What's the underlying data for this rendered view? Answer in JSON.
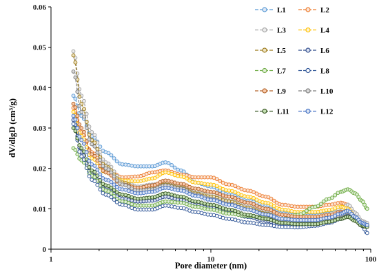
{
  "chart_data": {
    "type": "line",
    "title": "",
    "xlabel": "Pore diameter (nm)",
    "ylabel": "dV/dlgD (cm³/g)",
    "xscale": "log",
    "xlim": [
      1,
      100
    ],
    "ylim": [
      0,
      0.06
    ],
    "grid": false,
    "legend_position": "top-right",
    "x_ticks": [
      1,
      10,
      100
    ],
    "x_tick_labels": [
      "1",
      "10",
      "100"
    ],
    "y_ticks": [
      0,
      0.01,
      0.02,
      0.03,
      0.04,
      0.05,
      0.06
    ],
    "y_tick_labels": [
      "0",
      "0.01",
      "0.02",
      "0.03",
      "0.04",
      "0.05",
      "0.06"
    ],
    "x": [
      1.38,
      1.55,
      1.8,
      2.2,
      2.8,
      3.5,
      4.3,
      5.2,
      6.5,
      8,
      10,
      13,
      17,
      22,
      28,
      35,
      45,
      55,
      65,
      72,
      80,
      88,
      95
    ],
    "series": [
      {
        "name": "L1",
        "color": "#5b9bd5",
        "marker_fill": "#dfe9f7",
        "values": [
          0.038,
          0.033,
          0.028,
          0.024,
          0.021,
          0.0205,
          0.0205,
          0.0215,
          0.0195,
          0.0165,
          0.0155,
          0.0135,
          0.012,
          0.011,
          0.0095,
          0.009,
          0.009,
          0.0095,
          0.0105,
          0.011,
          0.0085,
          0.0065,
          0.006
        ]
      },
      {
        "name": "L2",
        "color": "#ed7d31",
        "marker_fill": "#fbe5d6",
        "values": [
          0.035,
          0.029,
          0.024,
          0.02,
          0.0178,
          0.018,
          0.019,
          0.0195,
          0.0185,
          0.0178,
          0.0178,
          0.016,
          0.0145,
          0.013,
          0.011,
          0.0105,
          0.0105,
          0.011,
          0.0115,
          0.011,
          0.0085,
          0.0065,
          0.006
        ]
      },
      {
        "name": "L3",
        "color": "#a5a5a5",
        "marker_fill": "#ededed",
        "values": [
          0.049,
          0.038,
          0.029,
          0.0215,
          0.017,
          0.0155,
          0.016,
          0.0165,
          0.0155,
          0.014,
          0.0135,
          0.012,
          0.0105,
          0.009,
          0.0075,
          0.007,
          0.0072,
          0.008,
          0.0095,
          0.011,
          0.009,
          0.007,
          0.0065
        ]
      },
      {
        "name": "L4",
        "color": "#ffc000",
        "marker_fill": "#fff2cc",
        "values": [
          0.034,
          0.028,
          0.0225,
          0.019,
          0.017,
          0.0168,
          0.0175,
          0.019,
          0.018,
          0.0165,
          0.016,
          0.0145,
          0.013,
          0.0115,
          0.0098,
          0.0092,
          0.0092,
          0.0097,
          0.0105,
          0.01,
          0.0078,
          0.0062,
          0.006
        ]
      },
      {
        "name": "L5",
        "color": "#9c7a1a",
        "marker_fill": "#efe4c4",
        "values": [
          0.048,
          0.036,
          0.027,
          0.0205,
          0.0165,
          0.015,
          0.0152,
          0.016,
          0.0152,
          0.0138,
          0.013,
          0.0118,
          0.0102,
          0.0088,
          0.0072,
          0.0068,
          0.0068,
          0.0075,
          0.0088,
          0.0095,
          0.008,
          0.0063,
          0.006
        ]
      },
      {
        "name": "L6",
        "color": "#2e4a8a",
        "marker_fill": "#d9e1f2",
        "values": [
          0.032,
          0.024,
          0.0185,
          0.0148,
          0.0125,
          0.0118,
          0.012,
          0.013,
          0.0122,
          0.011,
          0.0102,
          0.009,
          0.008,
          0.007,
          0.006,
          0.0057,
          0.006,
          0.0068,
          0.008,
          0.0088,
          0.0075,
          0.006,
          0.0058
        ]
      },
      {
        "name": "L7",
        "color": "#70ad47",
        "marker_fill": "#e2efd9",
        "values": [
          0.025,
          0.022,
          0.0182,
          0.0145,
          0.0118,
          0.0108,
          0.0108,
          0.0118,
          0.0115,
          0.0105,
          0.0098,
          0.0088,
          0.0082,
          0.0078,
          0.0075,
          0.0085,
          0.0105,
          0.0125,
          0.0142,
          0.0148,
          0.0138,
          0.012,
          0.01
        ]
      },
      {
        "name": "L8",
        "color": "#2f5597",
        "marker_fill": "#ffffff",
        "values": [
          0.031,
          0.023,
          0.0172,
          0.0135,
          0.011,
          0.0098,
          0.0098,
          0.0108,
          0.0102,
          0.0092,
          0.0085,
          0.0075,
          0.0066,
          0.006,
          0.0055,
          0.0054,
          0.0058,
          0.0065,
          0.0075,
          0.0082,
          0.0072,
          0.0058,
          0.004
        ]
      },
      {
        "name": "L9",
        "color": "#b4642a",
        "marker_fill": "#f8cbad",
        "values": [
          0.036,
          0.03,
          0.0235,
          0.019,
          0.016,
          0.0152,
          0.0158,
          0.017,
          0.0162,
          0.015,
          0.0142,
          0.013,
          0.0115,
          0.01,
          0.0085,
          0.008,
          0.008,
          0.0085,
          0.0092,
          0.0092,
          0.0075,
          0.006,
          0.0058
        ]
      },
      {
        "name": "L10",
        "color": "#7f7f7f",
        "marker_fill": "#d9d9d9",
        "values": [
          0.044,
          0.034,
          0.026,
          0.02,
          0.016,
          0.0145,
          0.0148,
          0.0158,
          0.015,
          0.0135,
          0.0125,
          0.0112,
          0.0098,
          0.0085,
          0.0072,
          0.0068,
          0.0068,
          0.0075,
          0.0085,
          0.0092,
          0.0078,
          0.0062,
          0.0058
        ]
      },
      {
        "name": "L11",
        "color": "#375623",
        "marker_fill": "#c5e0b3",
        "values": [
          0.03,
          0.025,
          0.0195,
          0.0158,
          0.0135,
          0.0125,
          0.0128,
          0.0138,
          0.013,
          0.0118,
          0.011,
          0.0098,
          0.0085,
          0.0075,
          0.0065,
          0.0062,
          0.0062,
          0.0068,
          0.0075,
          0.008,
          0.007,
          0.0058,
          0.0055
        ]
      },
      {
        "name": "L12",
        "color": "#4472c4",
        "marker_fill": "#dae3f3",
        "values": [
          0.033,
          0.027,
          0.021,
          0.0172,
          0.0148,
          0.0138,
          0.0142,
          0.0152,
          0.0145,
          0.0132,
          0.0122,
          0.011,
          0.0098,
          0.0086,
          0.0075,
          0.0072,
          0.0072,
          0.0078,
          0.0088,
          0.0095,
          0.008,
          0.0065,
          0.006
        ]
      }
    ]
  }
}
